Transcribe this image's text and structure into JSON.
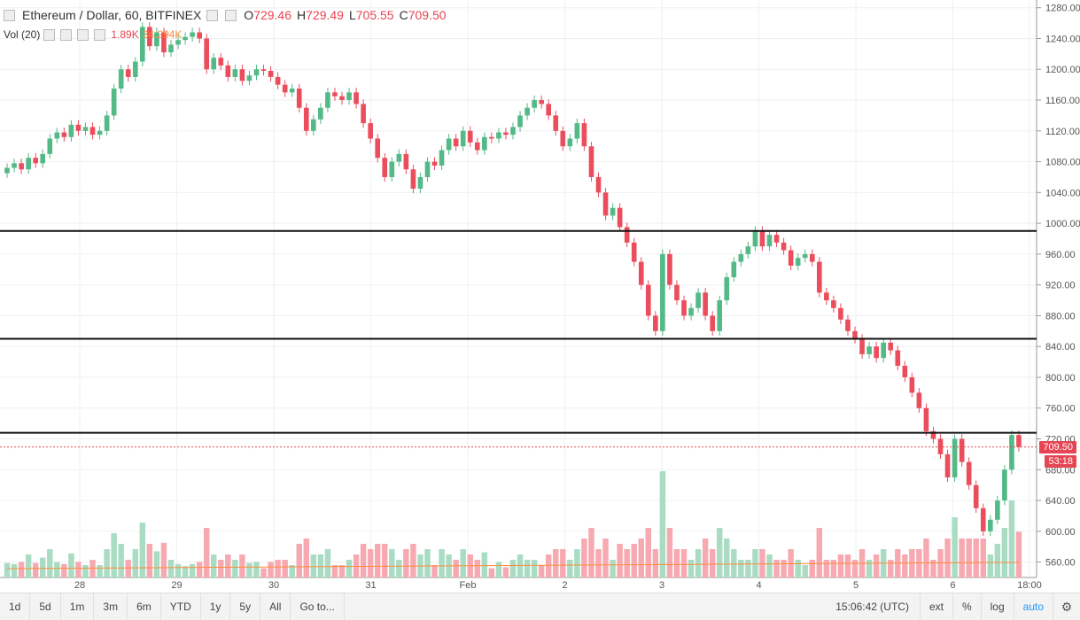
{
  "header": {
    "symbol": "Ethereum / Dollar, 60, BITFINEX",
    "o_label": "O",
    "o_value": "729.46",
    "h_label": "H",
    "h_value": "729.49",
    "l_label": "L",
    "l_value": "705.55",
    "c_label": "C",
    "c_value": "709.50"
  },
  "volume_indicator": {
    "label": "Vol (20)",
    "value": "1.89K",
    "ma_value": "34.294K"
  },
  "badges": {
    "last_price": "709.50",
    "countdown": "53:18"
  },
  "toolbar": {
    "ranges": [
      "1d",
      "5d",
      "1m",
      "3m",
      "6m",
      "YTD",
      "1y",
      "5y",
      "All"
    ],
    "goto": "Go to...",
    "time": "15:06:42 (UTC)",
    "ext": "ext",
    "percent": "%",
    "log": "log",
    "auto": "auto",
    "settings_icon": "gear-icon"
  },
  "colors": {
    "up": "#53b987",
    "down": "#eb4d5c",
    "up_volume": "#a9dcc3",
    "down_volume": "#f7a9b1",
    "ma_line": "#ff8c3a",
    "badge": "#e64553"
  },
  "chart_data": {
    "type": "candlestick",
    "x_ticks": [
      "28",
      "29",
      "30",
      "31",
      "Feb",
      "2",
      "3",
      "4",
      "5",
      "6",
      "18:00"
    ],
    "y_ticks": [
      "1280.00",
      "1240.00",
      "1200.00",
      "1160.00",
      "1120.00",
      "1080.00",
      "1040.00",
      "1000.00",
      "960.00",
      "920.00",
      "880.00",
      "840.00",
      "800.00",
      "760.00",
      "720.00",
      "680.00",
      "640.00",
      "600.00",
      "560.00"
    ],
    "ylim": [
      540,
      1290
    ],
    "horizontal_lines": [
      990,
      850,
      728
    ],
    "last_price": 709.5,
    "series_price": [
      [
        1065,
        1072
      ],
      [
        1072,
        1078
      ],
      [
        1078,
        1070
      ],
      [
        1070,
        1085
      ],
      [
        1085,
        1078
      ],
      [
        1078,
        1090
      ],
      [
        1090,
        1110
      ],
      [
        1110,
        1118
      ],
      [
        1118,
        1112
      ],
      [
        1112,
        1128
      ],
      [
        1128,
        1120
      ],
      [
        1120,
        1125
      ],
      [
        1125,
        1115
      ],
      [
        1115,
        1120
      ],
      [
        1120,
        1140
      ],
      [
        1140,
        1175
      ],
      [
        1175,
        1200
      ],
      [
        1200,
        1190
      ],
      [
        1190,
        1210
      ],
      [
        1210,
        1255
      ],
      [
        1255,
        1230
      ],
      [
        1230,
        1248
      ],
      [
        1248,
        1222
      ],
      [
        1222,
        1232
      ],
      [
        1232,
        1238
      ],
      [
        1238,
        1242
      ],
      [
        1242,
        1248
      ],
      [
        1248,
        1240
      ],
      [
        1240,
        1200
      ],
      [
        1200,
        1215
      ],
      [
        1215,
        1205
      ],
      [
        1205,
        1190
      ],
      [
        1190,
        1200
      ],
      [
        1200,
        1185
      ],
      [
        1185,
        1192
      ],
      [
        1192,
        1200
      ],
      [
        1200,
        1198
      ],
      [
        1198,
        1190
      ],
      [
        1190,
        1180
      ],
      [
        1180,
        1170
      ],
      [
        1170,
        1175
      ],
      [
        1175,
        1150
      ],
      [
        1150,
        1120
      ],
      [
        1120,
        1135
      ],
      [
        1135,
        1150
      ],
      [
        1150,
        1170
      ],
      [
        1170,
        1165
      ],
      [
        1165,
        1160
      ],
      [
        1160,
        1170
      ],
      [
        1170,
        1155
      ],
      [
        1155,
        1130
      ],
      [
        1130,
        1110
      ],
      [
        1110,
        1085
      ],
      [
        1085,
        1060
      ],
      [
        1060,
        1080
      ],
      [
        1080,
        1090
      ],
      [
        1090,
        1070
      ],
      [
        1070,
        1045
      ],
      [
        1045,
        1060
      ],
      [
        1060,
        1080
      ],
      [
        1080,
        1075
      ],
      [
        1075,
        1095
      ],
      [
        1095,
        1110
      ],
      [
        1110,
        1100
      ],
      [
        1100,
        1120
      ],
      [
        1120,
        1105
      ],
      [
        1105,
        1095
      ],
      [
        1095,
        1112
      ],
      [
        1112,
        1110
      ],
      [
        1110,
        1118
      ],
      [
        1118,
        1115
      ],
      [
        1115,
        1125
      ],
      [
        1125,
        1140
      ],
      [
        1140,
        1150
      ],
      [
        1150,
        1160
      ],
      [
        1160,
        1155
      ],
      [
        1155,
        1140
      ],
      [
        1140,
        1120
      ],
      [
        1120,
        1100
      ],
      [
        1100,
        1110
      ],
      [
        1110,
        1130
      ],
      [
        1130,
        1100
      ],
      [
        1100,
        1060
      ],
      [
        1060,
        1040
      ],
      [
        1040,
        1010
      ],
      [
        1010,
        1020
      ],
      [
        1020,
        995
      ],
      [
        995,
        975
      ],
      [
        975,
        950
      ],
      [
        950,
        920
      ],
      [
        920,
        880
      ],
      [
        880,
        860
      ],
      [
        860,
        960
      ],
      [
        960,
        920
      ],
      [
        920,
        900
      ],
      [
        900,
        880
      ],
      [
        880,
        890
      ],
      [
        890,
        910
      ],
      [
        910,
        880
      ],
      [
        880,
        860
      ],
      [
        860,
        900
      ],
      [
        900,
        930
      ],
      [
        930,
        950
      ],
      [
        950,
        960
      ],
      [
        960,
        970
      ],
      [
        970,
        990
      ],
      [
        990,
        970
      ],
      [
        970,
        985
      ],
      [
        985,
        975
      ],
      [
        975,
        965
      ],
      [
        965,
        945
      ],
      [
        945,
        955
      ],
      [
        955,
        960
      ],
      [
        960,
        950
      ],
      [
        950,
        910
      ],
      [
        910,
        900
      ],
      [
        900,
        890
      ],
      [
        890,
        875
      ],
      [
        875,
        860
      ],
      [
        860,
        850
      ],
      [
        850,
        830
      ],
      [
        830,
        840
      ],
      [
        840,
        825
      ],
      [
        825,
        845
      ],
      [
        845,
        835
      ],
      [
        835,
        815
      ],
      [
        815,
        800
      ],
      [
        800,
        780
      ],
      [
        780,
        760
      ],
      [
        760,
        730
      ],
      [
        730,
        720
      ],
      [
        720,
        700
      ],
      [
        700,
        670
      ],
      [
        670,
        720
      ],
      [
        720,
        690
      ],
      [
        690,
        660
      ],
      [
        660,
        630
      ],
      [
        630,
        600
      ],
      [
        600,
        615
      ],
      [
        615,
        640
      ],
      [
        640,
        680
      ],
      [
        680,
        725
      ],
      [
        725,
        709.5
      ]
    ]
  }
}
